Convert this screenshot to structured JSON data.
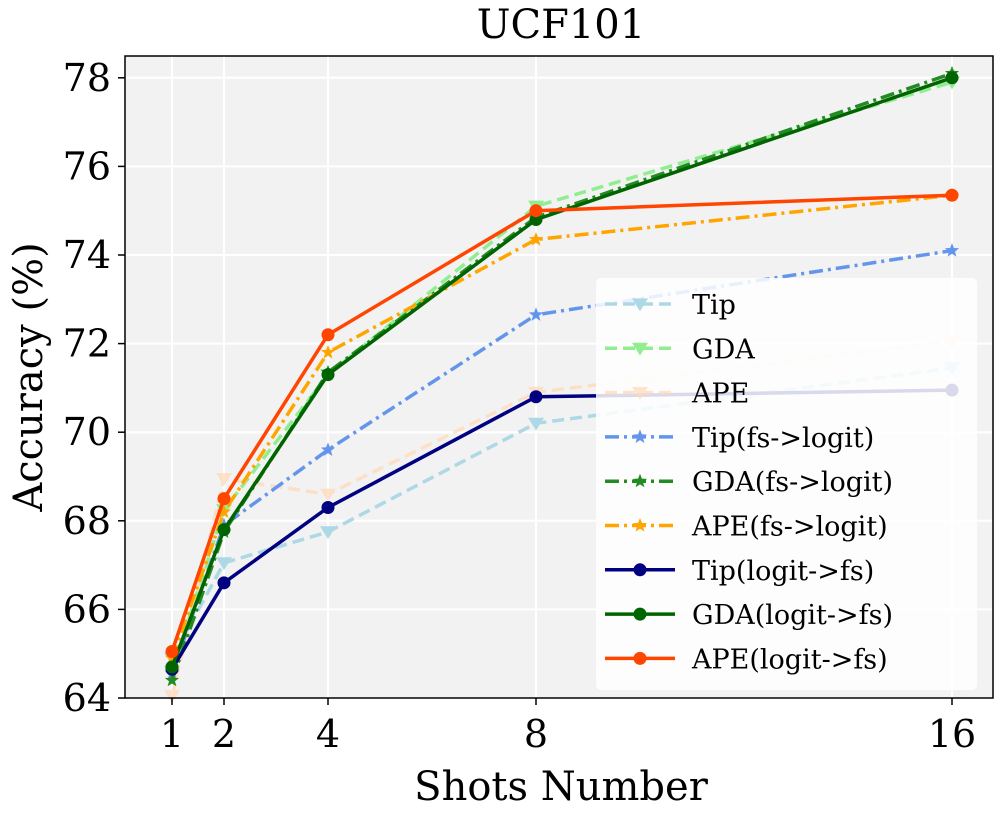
{
  "chart_data": {
    "type": "line",
    "title": "UCF101",
    "xlabel": "Shots Number",
    "ylabel": "Accuracy (%)",
    "x": [
      1,
      2,
      4,
      8,
      16
    ],
    "xticks": [
      "1",
      "2",
      "4",
      "8",
      "16"
    ],
    "yticks": [
      "64",
      "66",
      "68",
      "70",
      "72",
      "74",
      "76",
      "78"
    ],
    "ylim": [
      64,
      78.5
    ],
    "grid": true,
    "legend_position": "lower-right",
    "series": [
      {
        "name": "Tip",
        "values": [
          64.9,
          67.05,
          67.75,
          70.2,
          71.45
        ],
        "color": "#add8e6",
        "dash": "dashed",
        "marker": "triangle-down",
        "alpha": 1.0
      },
      {
        "name": "GDA",
        "values": [
          64.6,
          68.25,
          71.3,
          75.1,
          77.9
        ],
        "color": "#90ee90",
        "dash": "dashed",
        "marker": "triangle-down",
        "alpha": 1.0
      },
      {
        "name": "APE",
        "values": [
          64.05,
          68.95,
          68.6,
          70.9,
          72.05
        ],
        "color": "#ffdab9",
        "dash": "dashed",
        "marker": "triangle-down",
        "alpha": 0.75
      },
      {
        "name": "Tip(fs->logit)",
        "values": [
          64.55,
          67.9,
          69.6,
          72.65,
          74.1
        ],
        "color": "#6495ed",
        "dash": "dashdot",
        "marker": "star",
        "alpha": 1.0
      },
      {
        "name": "GDA(fs->logit)",
        "values": [
          64.4,
          67.75,
          71.35,
          74.85,
          78.1
        ],
        "color": "#228b22",
        "dash": "dashdot",
        "marker": "star",
        "alpha": 1.0
      },
      {
        "name": "APE(fs->logit)",
        "values": [
          64.9,
          68.2,
          71.8,
          74.35,
          75.35
        ],
        "color": "#ffa500",
        "dash": "dashdot",
        "marker": "star",
        "alpha": 1.0
      },
      {
        "name": "Tip(logit->fs)",
        "values": [
          64.65,
          66.6,
          68.3,
          70.8,
          70.95
        ],
        "color": "#000080",
        "dash": "solid",
        "marker": "circle",
        "alpha": 1.0
      },
      {
        "name": "GDA(logit->fs)",
        "values": [
          64.7,
          67.8,
          71.3,
          74.8,
          78.0
        ],
        "color": "#006400",
        "dash": "solid",
        "marker": "circle",
        "alpha": 1.0
      },
      {
        "name": "APE(logit->fs)",
        "values": [
          65.05,
          68.5,
          72.2,
          75.0,
          75.35
        ],
        "color": "#ff4500",
        "dash": "solid",
        "marker": "circle",
        "alpha": 1.0
      }
    ]
  }
}
